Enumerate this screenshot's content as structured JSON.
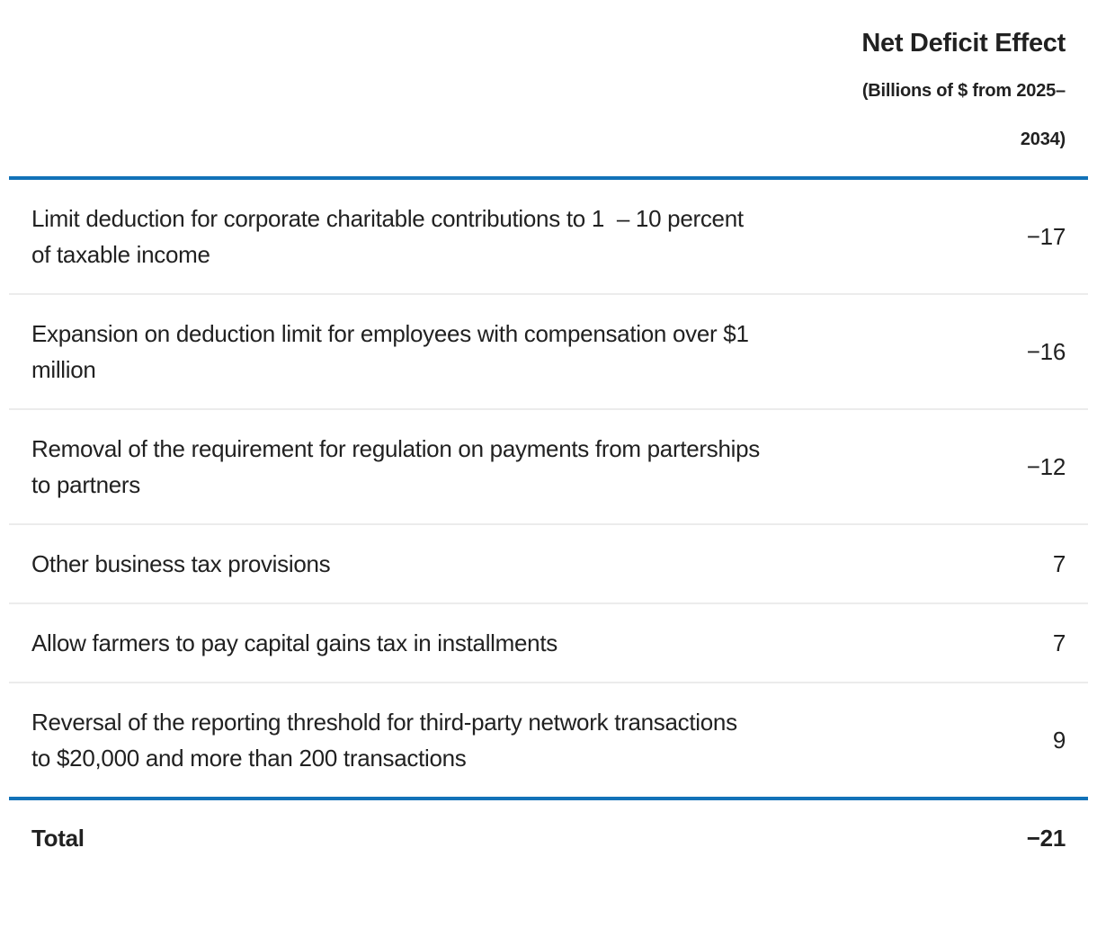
{
  "table": {
    "header": {
      "title": "Net Deficit Effect",
      "subtitle": "(Billions of $ from 2025–2034)"
    },
    "rows": [
      {
        "label": "Limit deduction for corporate charitable contributions to 1  – 10 percent of taxable income",
        "value": "−17"
      },
      {
        "label": "Expansion on deduction limit for employees with compensation over $1 million",
        "value": "−16"
      },
      {
        "label": "Removal of the requirement for regulation on payments from parterships to partners",
        "value": "−12"
      },
      {
        "label": "Other business tax provisions",
        "value": "7"
      },
      {
        "label": "Allow farmers to pay capital gains tax in installments",
        "value": "7"
      },
      {
        "label": "Reversal of the reporting threshold for third-party network transactions to $20,000 and more than 200 transactions",
        "value": "9"
      }
    ],
    "total": {
      "label": "Total",
      "value": "−21"
    }
  },
  "colors": {
    "accent_blue": "#1272b8",
    "divider_gray": "#ececec",
    "text": "#212121"
  }
}
